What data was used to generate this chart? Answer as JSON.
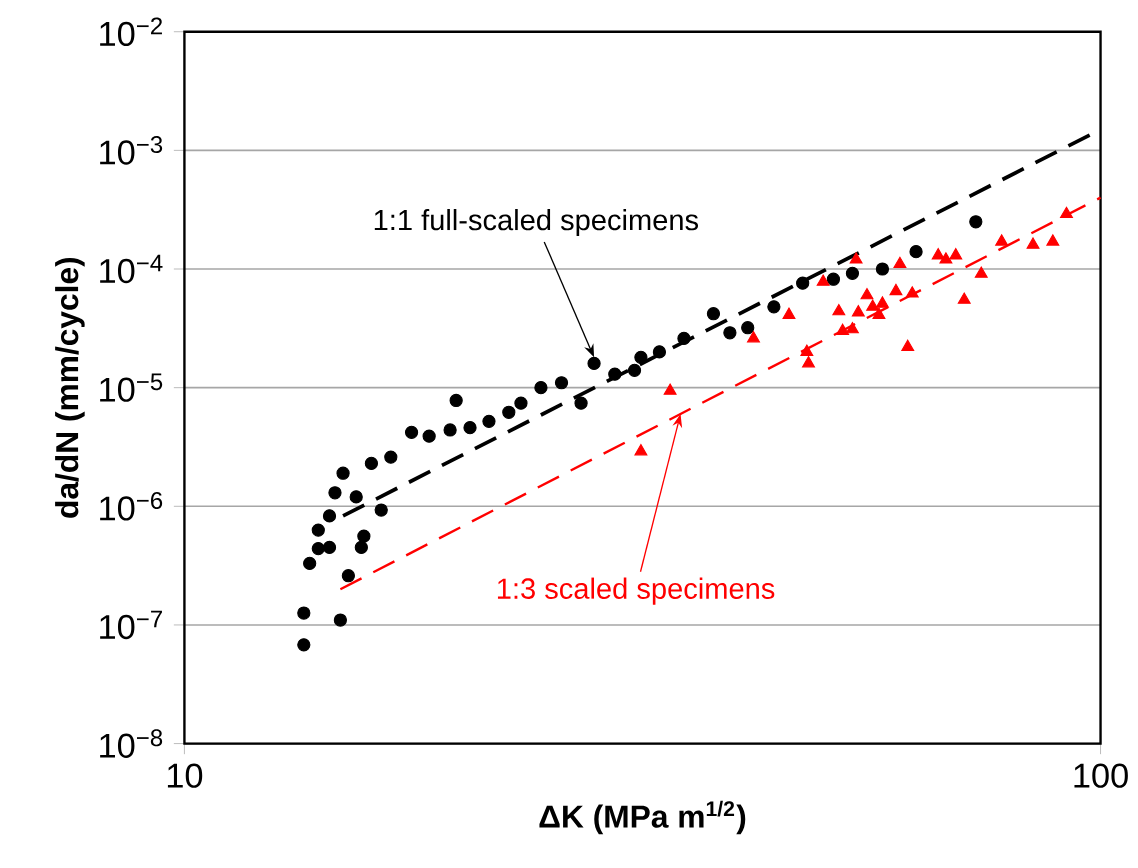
{
  "chart_data": {
    "type": "scatter",
    "xlabel": "ΔK  (MPa m$^{1/2}$)",
    "ylabel": "da/dN  (mm/cycle)",
    "log": "xy",
    "xlim": [
      10,
      100
    ],
    "ylim": [
      1e-08,
      0.01
    ],
    "xticks": [
      10,
      100
    ],
    "yticks": [
      {
        "value": 1e-08,
        "label": "10$^{−8}$"
      },
      {
        "value": 1e-07,
        "label": "10$^{−7}$"
      },
      {
        "value": 1e-06,
        "label": "10$^{−6}$"
      },
      {
        "value": 1e-05,
        "label": "10$^{−5}$"
      },
      {
        "value": 0.0001,
        "label": "10$^{−4}$"
      },
      {
        "value": 0.001,
        "label": "10$^{−3}$"
      },
      {
        "value": 0.01,
        "label": "10$^{−2}$"
      }
    ],
    "grid": "y",
    "series": [
      {
        "marker": "circle",
        "color": "#000000",
        "x": [
          13.5,
          13.5,
          14.8,
          15.1,
          13.7,
          14.0,
          14.4,
          14.0,
          14.4,
          14.6,
          14.9,
          15.4,
          15.7,
          15.6,
          16.4,
          16.0,
          16.8,
          17.7,
          18.5,
          19.5,
          19.8,
          20.5,
          21.5,
          22.6,
          23.3,
          24.5,
          25.8,
          27.1,
          28.0,
          29.5,
          31.5,
          31.0,
          33.0,
          35.1,
          37.8,
          39.4,
          41.2,
          44.0,
          47.3,
          51.1,
          53.6,
          57.8,
          62.9,
          73.1
        ],
        "values": [
          1.26e-07,
          6.8e-08,
          1.1e-07,
          2.6e-07,
          3.3e-07,
          4.4e-07,
          4.5e-07,
          6.3e-07,
          8.3e-07,
          1.3e-06,
          1.9e-06,
          1.2e-06,
          5.6e-07,
          4.5e-07,
          9.3e-07,
          2.3e-06,
          2.6e-06,
          4.2e-06,
          3.9e-06,
          4.4e-06,
          7.8e-06,
          4.6e-06,
          5.2e-06,
          6.2e-06,
          7.4e-06,
          1e-05,
          1.1e-05,
          7.4e-06,
          1.6e-05,
          1.3e-05,
          1.8e-05,
          1.4e-05,
          2e-05,
          2.6e-05,
          4.2e-05,
          2.9e-05,
          3.2e-05,
          4.8e-05,
          7.6e-05,
          8.2e-05,
          9.2e-05,
          0.0001,
          0.00014,
          0.00025
        ]
      },
      {
        "marker": "triangle",
        "color": "#ff0000",
        "x": [
          31.5,
          33.9,
          41.8,
          45.7,
          47.8,
          48.0,
          49.8,
          51.8,
          52.3,
          53.6,
          54.1,
          54.4,
          55.6,
          56.4,
          57.8,
          57.3,
          59.8,
          60.4,
          61.6,
          62.3,
          66.5,
          67.8,
          69.5,
          71.0,
          74.1,
          78.0,
          84.4,
          88.7,
          91.8
        ],
        "values": [
          2.9e-06,
          9.4e-06,
          2.6e-05,
          4.1e-05,
          2e-05,
          1.6e-05,
          7.8e-05,
          4.4e-05,
          3e-05,
          3.1e-05,
          0.00012,
          4.3e-05,
          6e-05,
          4.8e-05,
          5.1e-05,
          4.1e-05,
          6.5e-05,
          0.00011,
          2.2e-05,
          6.2e-05,
          0.00013,
          0.00012,
          0.00013,
          5.5e-05,
          9.1e-05,
          0.00017,
          0.00016,
          0.00017,
          0.00029
        ]
      },
      {
        "type": "line",
        "line_style": "dashed",
        "color": "#000000",
        "x": [
          14.9,
          100
        ],
        "values": [
          8.3e-07,
          0.0015
        ]
      },
      {
        "type": "line",
        "line_style": "dashed",
        "color": "#ff0000",
        "x": [
          14.8,
          100
        ],
        "values": [
          2e-07,
          0.0004
        ]
      }
    ],
    "annotations": [
      {
        "text": "1:1 full-scaled specimens",
        "x": 28.0,
        "y": 1.8e-05
      },
      {
        "text": "1:3 scaled specimens",
        "x": 34.8,
        "y": 6e-06
      }
    ]
  }
}
